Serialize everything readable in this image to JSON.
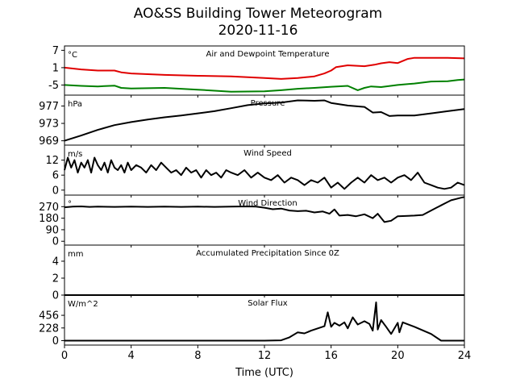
{
  "figure": {
    "title": "AO&SS Building Tower Meteorogram",
    "subtitle": "2020-11-16",
    "xlabel": "Time (UTC)"
  },
  "colors": {
    "air_temp": "#e00000",
    "dewpoint": "#008000",
    "line": "#000000"
  },
  "chart_data": [
    {
      "type": "line",
      "title": "Air and Dewpoint Temperature",
      "unit_label": "°C",
      "xlim": [
        0,
        24
      ],
      "ylim": [
        -8.5,
        8.5
      ],
      "yticks": [
        7,
        1,
        -5
      ],
      "series": [
        {
          "color": "#e00000",
          "x": [
            0,
            1,
            2,
            3,
            3.4,
            4,
            6,
            8,
            10,
            12,
            13,
            14,
            15,
            15.6,
            16,
            16.3,
            17,
            18,
            18.6,
            19,
            19.5,
            20,
            20.6,
            21,
            22,
            23,
            24
          ],
          "y": [
            1,
            0.4,
            0,
            0,
            -0.6,
            -1,
            -1.5,
            -1.8,
            -2,
            -2.6,
            -2.9,
            -2.6,
            -2,
            -1,
            0,
            1.2,
            1.8,
            1.5,
            2,
            2.5,
            2.9,
            2.6,
            4,
            4.4,
            4.4,
            4.4,
            4.2
          ]
        },
        {
          "color": "#008000",
          "x": [
            0,
            1,
            2,
            3,
            3.4,
            4,
            6,
            8,
            10,
            12,
            13,
            14,
            15,
            16,
            17,
            17.6,
            18,
            18.4,
            19,
            20,
            21,
            22,
            23,
            23.6,
            24
          ],
          "y": [
            -5,
            -5.3,
            -5.5,
            -5.2,
            -6,
            -6.2,
            -6,
            -6.6,
            -7.3,
            -7.2,
            -6.8,
            -6.3,
            -6,
            -5.6,
            -5.3,
            -6.8,
            -6,
            -5.5,
            -5.7,
            -5,
            -4.5,
            -3.8,
            -3.7,
            -3.3,
            -3.1
          ]
        }
      ]
    },
    {
      "type": "line",
      "title": "Pressure",
      "unit_label": "hPa",
      "xlim": [
        0,
        24
      ],
      "ylim": [
        968,
        979.5
      ],
      "yticks": [
        977,
        973,
        969
      ],
      "series": [
        {
          "color": "#000000",
          "x": [
            0,
            1,
            2,
            3,
            4,
            5,
            6,
            7,
            8,
            9,
            10,
            11,
            12,
            13,
            14,
            15,
            15.6,
            16,
            17,
            18,
            18.5,
            19,
            19.5,
            20,
            21,
            22,
            23,
            24
          ],
          "y": [
            969,
            970.2,
            971.5,
            972.6,
            973.3,
            973.9,
            974.4,
            974.8,
            975.3,
            975.8,
            976.5,
            977.2,
            977.6,
            977.8,
            978.3,
            978.2,
            978.3,
            977.7,
            977.1,
            976.8,
            975.5,
            975.6,
            974.7,
            974.8,
            974.8,
            975.3,
            975.8,
            976.3
          ]
        }
      ]
    },
    {
      "type": "line",
      "title": "Wind Speed",
      "unit_label": "m/s",
      "xlim": [
        0,
        24
      ],
      "ylim": [
        -2,
        18
      ],
      "yticks": [
        12,
        6,
        0
      ],
      "series": [
        {
          "color": "#000000",
          "x": [
            0,
            0.2,
            0.4,
            0.6,
            0.8,
            1,
            1.2,
            1.4,
            1.6,
            1.8,
            2,
            2.2,
            2.4,
            2.6,
            2.8,
            3,
            3.2,
            3.4,
            3.6,
            3.8,
            4,
            4.3,
            4.6,
            4.9,
            5.2,
            5.5,
            5.8,
            6.1,
            6.4,
            6.7,
            7,
            7.3,
            7.6,
            7.9,
            8.2,
            8.5,
            8.8,
            9.1,
            9.4,
            9.7,
            10,
            10.4,
            10.8,
            11.2,
            11.6,
            12,
            12.4,
            12.8,
            13.2,
            13.6,
            14,
            14.4,
            14.8,
            15.2,
            15.6,
            16,
            16.4,
            16.8,
            17.2,
            17.6,
            18,
            18.4,
            18.8,
            19.2,
            19.6,
            20,
            20.4,
            20.8,
            21.2,
            21.6,
            22,
            22.4,
            22.8,
            23.2,
            23.6,
            24
          ],
          "y": [
            8,
            13,
            9,
            12,
            7,
            11,
            9,
            12,
            7,
            13,
            10,
            8,
            11,
            7,
            12,
            9,
            8,
            10,
            7,
            11,
            8,
            10,
            9,
            7,
            10,
            8,
            11,
            9,
            7,
            8,
            6,
            9,
            7,
            8,
            5,
            8,
            6,
            7,
            5,
            8,
            7,
            6,
            8,
            5,
            7,
            5,
            4,
            6,
            3,
            5,
            4,
            2,
            4,
            3,
            5,
            1,
            3,
            0.5,
            3,
            5,
            3,
            6,
            4,
            5,
            3,
            5,
            6,
            4,
            7,
            3,
            2,
            1,
            0.5,
            1,
            3,
            2
          ]
        }
      ]
    },
    {
      "type": "line",
      "title": "Wind Direction",
      "unit_label": "°",
      "xlim": [
        0,
        24
      ],
      "ylim": [
        -30,
        360
      ],
      "yticks": [
        270,
        180,
        90,
        0
      ],
      "series": [
        {
          "color": "#000000",
          "x": [
            0,
            0.5,
            1,
            1.5,
            2,
            3,
            4,
            5,
            6,
            7,
            8,
            9,
            10,
            11,
            11.5,
            12,
            12.5,
            13,
            13.5,
            14,
            14.5,
            15,
            15.5,
            15.9,
            16.2,
            16.5,
            17,
            17.5,
            18,
            18.5,
            18.8,
            19.2,
            19.6,
            20,
            21,
            21.5,
            22,
            22.3,
            22.6,
            22.9,
            23.2,
            23.5,
            23.8,
            24
          ],
          "y": [
            265,
            270,
            272,
            268,
            270,
            268,
            270,
            268,
            270,
            268,
            270,
            268,
            270,
            272,
            270,
            262,
            250,
            255,
            240,
            235,
            238,
            225,
            232,
            215,
            248,
            200,
            205,
            195,
            210,
            180,
            215,
            150,
            160,
            195,
            200,
            205,
            240,
            260,
            280,
            300,
            320,
            330,
            340,
            345
          ]
        }
      ]
    },
    {
      "type": "line",
      "title": "Accumulated Precipitation Since 0Z",
      "unit_label": "mm",
      "xlim": [
        0,
        24
      ],
      "ylim": [
        0,
        5.9
      ],
      "yticks": [
        4,
        2,
        0
      ],
      "series": [
        {
          "color": "#000000",
          "x": [
            0,
            24
          ],
          "y": [
            0,
            0
          ]
        }
      ]
    },
    {
      "type": "line",
      "title": "Solar Flux",
      "unit_label": "W/m^2",
      "xlim": [
        0,
        24
      ],
      "ylim": [
        -80,
        820
      ],
      "yticks": [
        456,
        228,
        0
      ],
      "series": [
        {
          "color": "#000000",
          "x": [
            0,
            4,
            8,
            12,
            13,
            13.5,
            14,
            14.4,
            14.8,
            15.2,
            15.6,
            15.8,
            16,
            16.2,
            16.5,
            16.8,
            17,
            17.3,
            17.6,
            18,
            18.3,
            18.5,
            18.7,
            18.8,
            19,
            19.3,
            19.6,
            20,
            20.1,
            20.3,
            21,
            22,
            22.6,
            23,
            24
          ],
          "y": [
            0,
            0,
            0,
            0,
            5,
            60,
            150,
            130,
            180,
            220,
            260,
            510,
            250,
            320,
            270,
            330,
            220,
            420,
            290,
            350,
            300,
            180,
            690,
            200,
            370,
            250,
            120,
            320,
            150,
            330,
            250,
            120,
            0,
            0,
            0
          ]
        }
      ]
    }
  ]
}
